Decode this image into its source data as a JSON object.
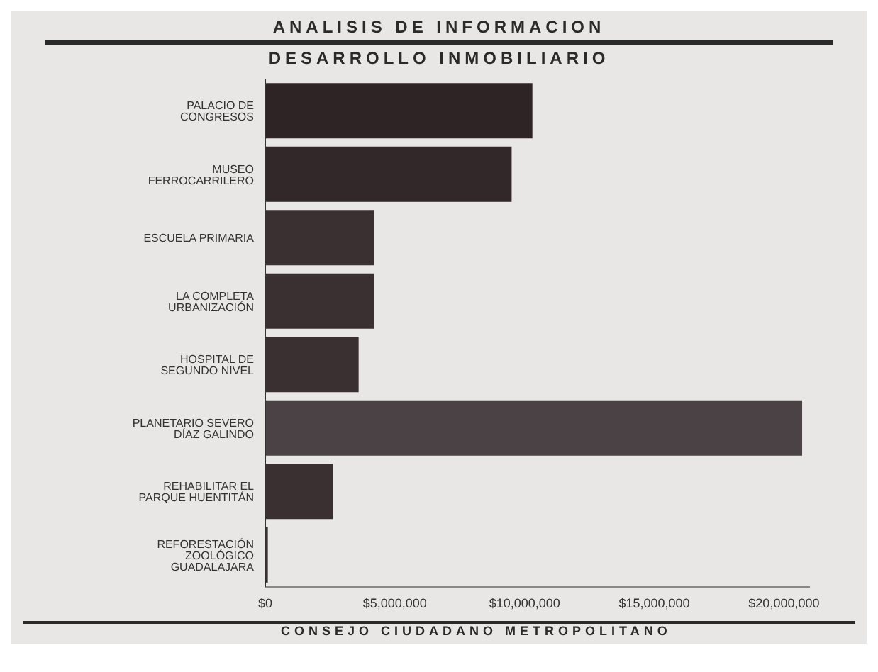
{
  "chart_data": {
    "type": "bar",
    "orientation": "horizontal",
    "title": "ANALISIS DE INFORMACION",
    "subtitle": "DESARROLLO INMOBILIARIO",
    "categories": [
      "PALACIO DE CONGRESOS",
      "MUSEO FERROCARRILERO",
      "ESCUELA PRIMARIA",
      "LA COMPLETA URBANIZACIÓN",
      "HOSPITAL DE SEGUNDO NIVEL",
      "PLANETARIO SEVERO DÍAZ GALINDO",
      "REHABILITAR EL PARQUE HUENTITÁN",
      "REFORESTACIÓN ZOOLÓGICO GUADALAJARA"
    ],
    "values": [
      10300000,
      9500000,
      4200000,
      4200000,
      3600000,
      20700000,
      2600000,
      100000
    ],
    "colors": [
      "#2e2426",
      "#322829",
      "#3a3032",
      "#3a3032",
      "#3a3032",
      "#4a4244",
      "#3a3032",
      "#3a3032"
    ],
    "xlim": [
      0,
      21000000
    ],
    "xticks": [
      {
        "value": 0,
        "label": "$0"
      },
      {
        "value": 5000000,
        "label": "$5,000,000"
      },
      {
        "value": 10000000,
        "label": "$10,000,000"
      },
      {
        "value": 15000000,
        "label": "$15,000,000"
      },
      {
        "value": 20000000,
        "label": "$20,000,000"
      }
    ],
    "grid": false,
    "annotations": [
      "CONSEJO CIUDADANO METROPOLITANO"
    ]
  }
}
